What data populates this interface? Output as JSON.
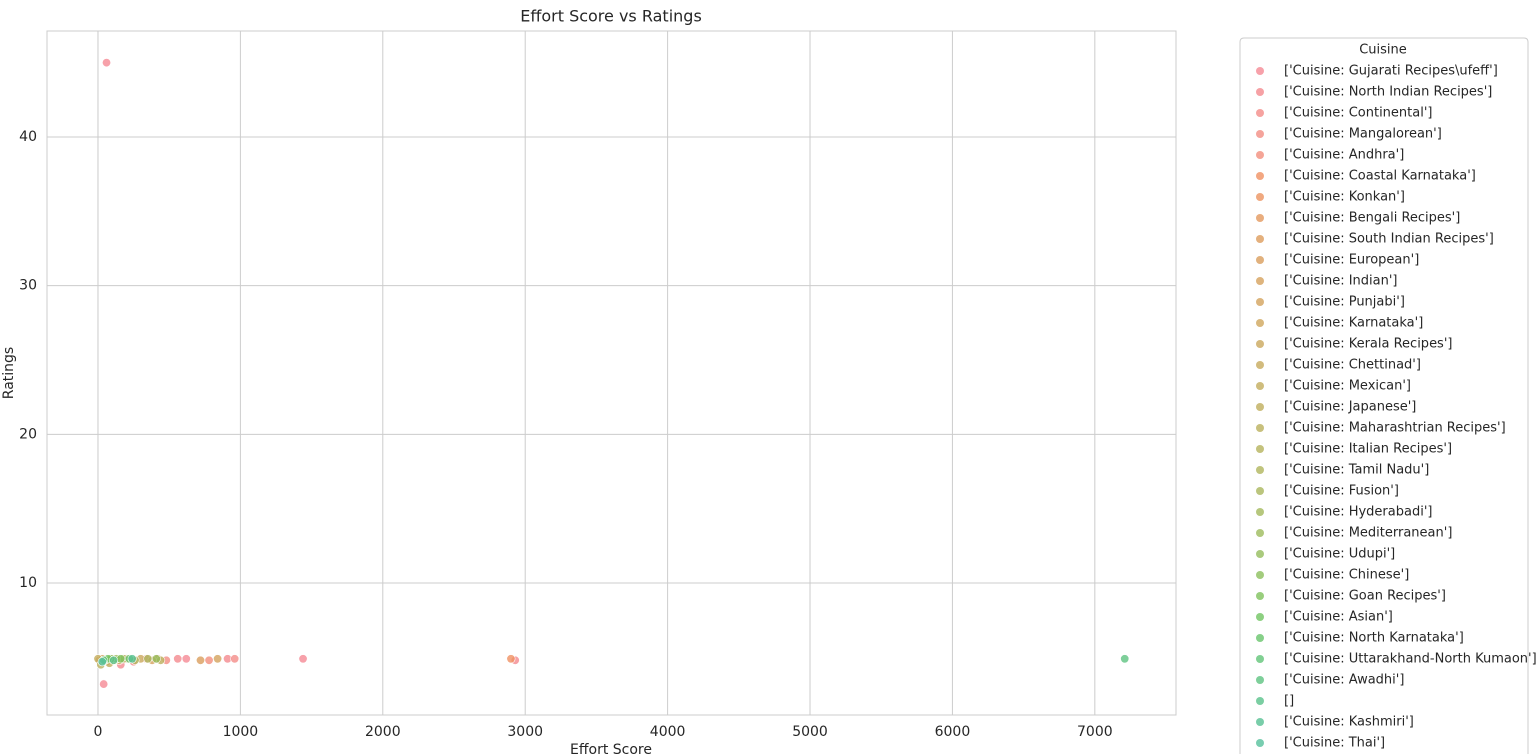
{
  "chart_data": {
    "type": "scatter",
    "title": "Effort Score vs Ratings",
    "x_label": "Effort Score",
    "y_label": "Ratings",
    "xlim": [
      -358,
      7570
    ],
    "ylim": [
      1.12,
      47.13
    ],
    "xticks": [
      0,
      1000,
      2000,
      3000,
      4000,
      5000,
      6000,
      7000
    ],
    "yticks": [
      10,
      20,
      30,
      40
    ],
    "grid": true,
    "legend_title": "Cuisine",
    "legend_position": "outside right",
    "series": [
      {
        "name": "['Cuisine: Gujarati Recipes\\ufeff']",
        "color": "#f58a95",
        "x": [
          60,
          40,
          1440,
          620
        ],
        "values": [
          45,
          3.2,
          4.9,
          4.9
        ]
      },
      {
        "name": "['Cuisine: North Indian Recipes']",
        "color": "#f48a8f",
        "x": [
          2930,
          160,
          560,
          910
        ],
        "values": [
          4.8,
          4.5,
          4.9,
          4.9
        ]
      },
      {
        "name": "['Cuisine: Continental']",
        "color": "#f48c88",
        "x": [
          960,
          250
        ],
        "values": [
          4.9,
          4.7
        ]
      },
      {
        "name": "['Cuisine: Mangalorean']",
        "color": "#f38d83",
        "x": [
          480
        ],
        "values": [
          4.8
        ]
      },
      {
        "name": "['Cuisine: Andhra']",
        "color": "#f28e7d",
        "x": [
          780,
          340
        ],
        "values": [
          4.8,
          4.9
        ]
      },
      {
        "name": "['Cuisine: Coastal Karnataka']",
        "color": "#f09163",
        "x": [
          2900
        ],
        "values": [
          4.9
        ]
      },
      {
        "name": "['Cuisine: Konkan']",
        "color": "#ec9360",
        "x": [
          120
        ],
        "values": [
          4.8
        ]
      },
      {
        "name": "['Cuisine: Bengali Recipes']",
        "color": "#e3985e",
        "x": [
          420
        ],
        "values": [
          4.9
        ]
      },
      {
        "name": "['Cuisine: South Indian Recipes']",
        "color": "#dd9c5c",
        "x": [
          10,
          60
        ],
        "values": [
          4.8,
          4.7
        ]
      },
      {
        "name": "['Cuisine: European']",
        "color": "#da9e5c",
        "x": [
          720
        ],
        "values": [
          4.8
        ]
      },
      {
        "name": "['Cuisine: Indian']",
        "color": "#d6a15c",
        "x": [
          30,
          200,
          380
        ],
        "values": [
          4.9,
          4.9,
          4.8
        ]
      },
      {
        "name": "['Cuisine: Punjabi']",
        "color": "#d3a35c",
        "x": [
          840
        ],
        "values": [
          4.9
        ]
      },
      {
        "name": "['Cuisine: Karnataka']",
        "color": "#cfa65c",
        "x": [
          100
        ],
        "values": [
          4.9
        ]
      },
      {
        "name": "['Cuisine: Kerala Recipes']",
        "color": "#cba85c",
        "x": [
          300
        ],
        "values": [
          4.9
        ]
      },
      {
        "name": "['Cuisine: Chettinad']",
        "color": "#c7aa5c",
        "x": [
          150
        ],
        "values": [
          4.8
        ]
      },
      {
        "name": "['Cuisine: Mexican']",
        "color": "#c3ac5c",
        "x": [
          0
        ],
        "values": [
          4.9
        ]
      },
      {
        "name": "['Cuisine: Japanese']",
        "color": "#bfae5c",
        "x": [
          80
        ],
        "values": [
          4.6
        ]
      },
      {
        "name": "['Cuisine: Maharashtrian Recipes']",
        "color": "#bab05c",
        "x": [
          20,
          440
        ],
        "values": [
          4.5,
          4.8
        ]
      },
      {
        "name": "['Cuisine: Italian Recipes']",
        "color": "#b5b35c",
        "x": [
          180
        ],
        "values": [
          4.9
        ]
      },
      {
        "name": "['Cuisine: Tamil Nadu']",
        "color": "#b0b55c",
        "x": [
          260
        ],
        "values": [
          4.8
        ]
      },
      {
        "name": "['Cuisine: Fusion']",
        "color": "#aab75c",
        "x": [
          350
        ],
        "values": [
          4.9
        ]
      },
      {
        "name": "['Cuisine: Hyderabadi']",
        "color": "#a4b95c",
        "x": [
          50
        ],
        "values": [
          4.8
        ]
      },
      {
        "name": "['Cuisine: Mediterranean']",
        "color": "#9dbb5c",
        "x": [
          130
        ],
        "values": [
          4.9
        ]
      },
      {
        "name": "['Cuisine: Udupi']",
        "color": "#95bd5c",
        "x": [
          410
        ],
        "values": [
          4.9
        ]
      },
      {
        "name": "['Cuisine: Chinese']",
        "color": "#8cbf5c",
        "x": [
          90
        ],
        "values": [
          4.9
        ]
      },
      {
        "name": "['Cuisine: Goan Recipes']",
        "color": "#7fc25c",
        "x": [
          160
        ],
        "values": [
          4.9
        ]
      },
      {
        "name": "['Cuisine: Asian']",
        "color": "#70c462",
        "x": [
          70
        ],
        "values": [
          4.9
        ]
      },
      {
        "name": "['Cuisine: North Karnataka']",
        "color": "#68c46b",
        "x": [
          220
        ],
        "values": [
          4.9
        ]
      },
      {
        "name": "['Cuisine: Uttarakhand-North Kumaon']",
        "color": "#62c478",
        "x": [
          40
        ],
        "values": [
          4.8
        ]
      },
      {
        "name": "['Cuisine: Awadhi']",
        "color": "#5ec381",
        "x": [
          7210
        ],
        "values": [
          4.9
        ]
      },
      {
        "name": "[]",
        "color": "#5ac28b",
        "x": [
          110
        ],
        "values": [
          4.8
        ]
      },
      {
        "name": "['Cuisine: Kashmiri']",
        "color": "#58c194",
        "x": [
          240
        ],
        "values": [
          4.9
        ]
      },
      {
        "name": "['Cuisine: Thai']",
        "color": "#56c09c",
        "x": [
          30
        ],
        "values": [
          4.7
        ]
      }
    ]
  }
}
